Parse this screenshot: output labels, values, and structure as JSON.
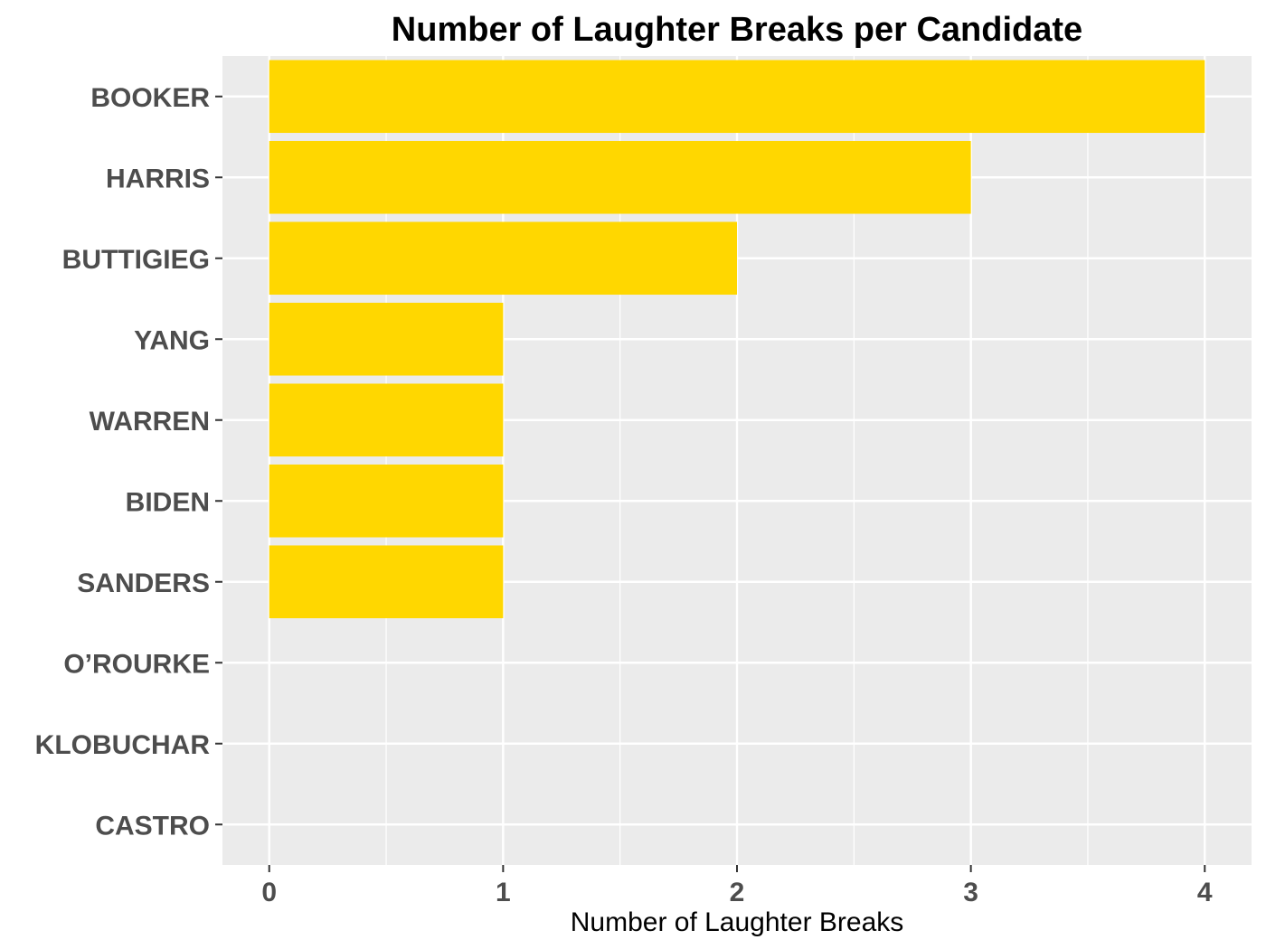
{
  "chart_data": {
    "type": "bar",
    "orientation": "horizontal",
    "title": "Number of Laughter Breaks per Candidate",
    "xlabel": "Number of Laughter Breaks",
    "ylabel": "",
    "categories": [
      "BOOKER",
      "HARRIS",
      "BUTTIGIEG",
      "YANG",
      "WARREN",
      "BIDEN",
      "SANDERS",
      "O’ROURKE",
      "KLOBUCHAR",
      "CASTRO"
    ],
    "values": [
      4,
      3,
      2,
      1,
      1,
      1,
      1,
      0,
      0,
      0
    ],
    "xlim": [
      -0.2,
      4.2
    ],
    "xticks": [
      "0",
      "1",
      "2",
      "3",
      "4"
    ],
    "grid": true,
    "legend": "none",
    "colors": {
      "bar": "#FFD700",
      "panel_background": "#EBEBEB",
      "grid_line": "#FFFFFF",
      "tick_label": "#4D4D4D",
      "title": "#000000"
    }
  }
}
